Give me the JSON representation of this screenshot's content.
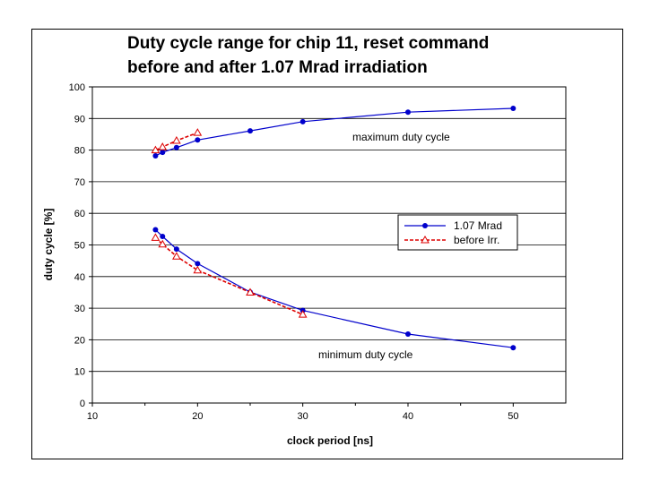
{
  "chart_data": {
    "type": "line",
    "title_line1": "Duty cycle range for chip 11, reset command",
    "title_line2": "before and after 1.07 Mrad irradiation",
    "xlabel": "clock period   [ns]",
    "ylabel": "duty cycle   [%]",
    "xlim": [
      10,
      55
    ],
    "ylim": [
      0,
      100
    ],
    "x_ticks": [
      10,
      20,
      30,
      40,
      50
    ],
    "y_ticks": [
      0,
      10,
      20,
      30,
      40,
      50,
      60,
      70,
      80,
      90,
      100
    ],
    "grid": "horizontal",
    "legend_position": "right-middle",
    "annotations": {
      "max_label": "maximum duty cycle",
      "min_label": "minimum duty cycle"
    },
    "series": [
      {
        "name": "1.07 Mrad",
        "color": "#0000cc",
        "line": "solid",
        "marker": "filled-circle",
        "groups": [
          {
            "x": [
              16,
              16.67,
              18,
              20,
              25,
              30,
              40,
              50
            ],
            "y": [
              78.2,
              79.3,
              80.8,
              83.2,
              86.1,
              89,
              92,
              93.2
            ]
          },
          {
            "x": [
              16,
              16.67,
              18,
              20,
              25,
              30,
              40,
              50
            ],
            "y": [
              54.8,
              52.7,
              48.7,
              44.1,
              35.1,
              29.3,
              21.8,
              17.5
            ]
          }
        ]
      },
      {
        "name": "before Irr.",
        "color": "#dd0000",
        "line": "dashed",
        "marker": "open-triangle",
        "groups": [
          {
            "x": [
              16,
              16.67,
              18,
              20
            ],
            "y": [
              80,
              81,
              83,
              85.5
            ]
          },
          {
            "x": [
              16,
              16.67,
              18,
              20,
              25,
              30
            ],
            "y": [
              52.3,
              50.2,
              46.4,
              42,
              35,
              28
            ]
          }
        ]
      }
    ]
  }
}
